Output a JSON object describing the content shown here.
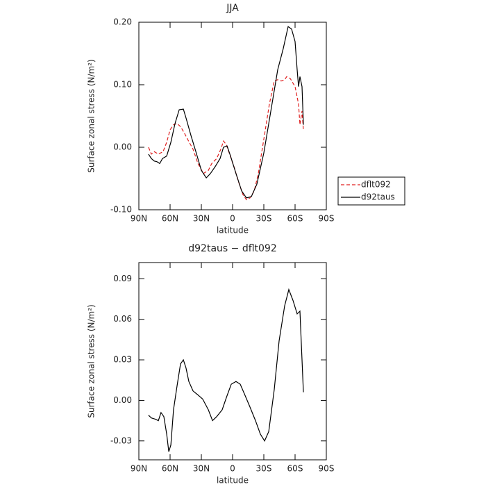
{
  "chart_data": [
    {
      "type": "line",
      "title": "JJA",
      "xlabel": "latitude",
      "ylabel": "Surface zonal stress (N/m²)",
      "xlim": [
        90,
        -90
      ],
      "ylim": [
        -0.1,
        0.2
      ],
      "xticks": [
        {
          "value": 90,
          "label": "90N"
        },
        {
          "value": 60,
          "label": "60N"
        },
        {
          "value": 30,
          "label": "30N"
        },
        0,
        {
          "value": -30,
          "label": "30S"
        },
        {
          "value": -60,
          "label": "60S"
        },
        {
          "value": -90,
          "label": "90S"
        }
      ],
      "yticks": [
        {
          "value": -0.1,
          "label": "-0.10"
        },
        {
          "value": 0,
          "label": "0.00"
        },
        {
          "value": 0.1,
          "label": "0.10"
        },
        {
          "value": 0.2,
          "label": "0.20"
        }
      ],
      "legend": "right",
      "series": [
        {
          "name": "dflt092",
          "color": "#e02020",
          "linestyle": "dashed",
          "x": [
            80.7,
            78,
            75.3,
            71.3,
            66.7,
            63.3,
            60,
            56.7,
            53.3,
            50,
            46.7,
            43.3,
            38,
            33.3,
            28,
            23.3,
            20,
            15.3,
            11.3,
            8.7,
            6,
            3.3,
            -1.3,
            -5.3,
            -10,
            -13.3,
            -16.7,
            -20.7,
            -24.7,
            -30,
            -35.3,
            -40,
            -43.3,
            -46.7,
            -50,
            -52,
            -55.3,
            -60,
            -63.3,
            -64.7,
            -66.7,
            -68
          ],
          "values": [
            0.0,
            -0.011,
            -0.007,
            -0.011,
            -0.007,
            0.008,
            0.028,
            0.036,
            0.038,
            0.033,
            0.024,
            0.013,
            -0.003,
            -0.026,
            -0.042,
            -0.037,
            -0.026,
            -0.018,
            -0.003,
            0.01,
            0.004,
            -0.009,
            -0.031,
            -0.053,
            -0.076,
            -0.084,
            -0.081,
            -0.07,
            -0.042,
            0.013,
            0.069,
            0.106,
            0.108,
            0.106,
            0.108,
            0.113,
            0.11,
            0.097,
            0.069,
            0.036,
            0.058,
            0.027
          ]
        },
        {
          "name": "d92taus",
          "color": "#000000",
          "linestyle": "solid",
          "x": [
            80.7,
            78,
            75.3,
            72.7,
            70,
            67.3,
            63.3,
            59.3,
            55.3,
            51.3,
            47.3,
            44.7,
            40,
            35.3,
            30,
            25.3,
            21.3,
            16.7,
            12,
            8.7,
            5.3,
            2,
            -3.3,
            -8.7,
            -13.3,
            -18,
            -23.3,
            -30,
            -36.7,
            -43.3,
            -48.7,
            -53.3,
            -56.7,
            -60,
            -62,
            -63.3,
            -64.7,
            -66.7,
            -68
          ],
          "values": [
            -0.011,
            -0.018,
            -0.022,
            -0.023,
            -0.026,
            -0.018,
            -0.014,
            0.008,
            0.038,
            0.06,
            0.061,
            0.047,
            0.019,
            -0.007,
            -0.037,
            -0.049,
            -0.042,
            -0.031,
            -0.018,
            0.0,
            0.002,
            -0.014,
            -0.042,
            -0.07,
            -0.081,
            -0.079,
            -0.059,
            -0.009,
            0.058,
            0.124,
            0.158,
            0.193,
            0.189,
            0.169,
            0.124,
            0.097,
            0.113,
            0.097,
            0.036
          ]
        }
      ]
    },
    {
      "type": "line",
      "title": "d92taus − dflt092",
      "xlabel": "latitude",
      "ylabel": "Surface zonal stress (N/m²)",
      "xlim": [
        90,
        -90
      ],
      "ylim": [
        -0.044,
        0.102
      ],
      "xticks": [
        {
          "value": 90,
          "label": "90N"
        },
        {
          "value": 60,
          "label": "60N"
        },
        {
          "value": 30,
          "label": "30N"
        },
        0,
        {
          "value": -30,
          "label": "30S"
        },
        {
          "value": -60,
          "label": "60S"
        },
        {
          "value": -90,
          "label": "90S"
        }
      ],
      "yticks": [
        -0.03,
        {
          "value": 0,
          "label": "0.00"
        },
        0.03,
        0.06,
        0.09
      ],
      "series": [
        {
          "color": "#000000",
          "linestyle": "solid",
          "x": [
            80.7,
            78,
            74,
            71.3,
            68.7,
            66,
            63.3,
            61.3,
            59.3,
            56.7,
            53.3,
            50,
            47.3,
            44.7,
            42,
            38,
            33.3,
            28.7,
            23.3,
            19.3,
            15.3,
            10,
            6,
            1.3,
            -3.3,
            -7.3,
            -11.3,
            -16.7,
            -22,
            -26.7,
            -30.7,
            -34.7,
            -40,
            -44.7,
            -50,
            -54,
            -58,
            -62,
            -64.7,
            -68
          ],
          "values": [
            -0.011,
            -0.013,
            -0.014,
            -0.015,
            -0.009,
            -0.012,
            -0.025,
            -0.038,
            -0.033,
            -0.007,
            0.011,
            0.027,
            0.03,
            0.024,
            0.014,
            0.007,
            0.004,
            0.001,
            -0.007,
            -0.015,
            -0.012,
            -0.007,
            0.002,
            0.012,
            0.014,
            0.012,
            0.005,
            -0.005,
            -0.015,
            -0.025,
            -0.03,
            -0.023,
            0.008,
            0.044,
            0.07,
            0.082,
            0.074,
            0.064,
            0.066,
            0.006
          ]
        }
      ]
    }
  ]
}
